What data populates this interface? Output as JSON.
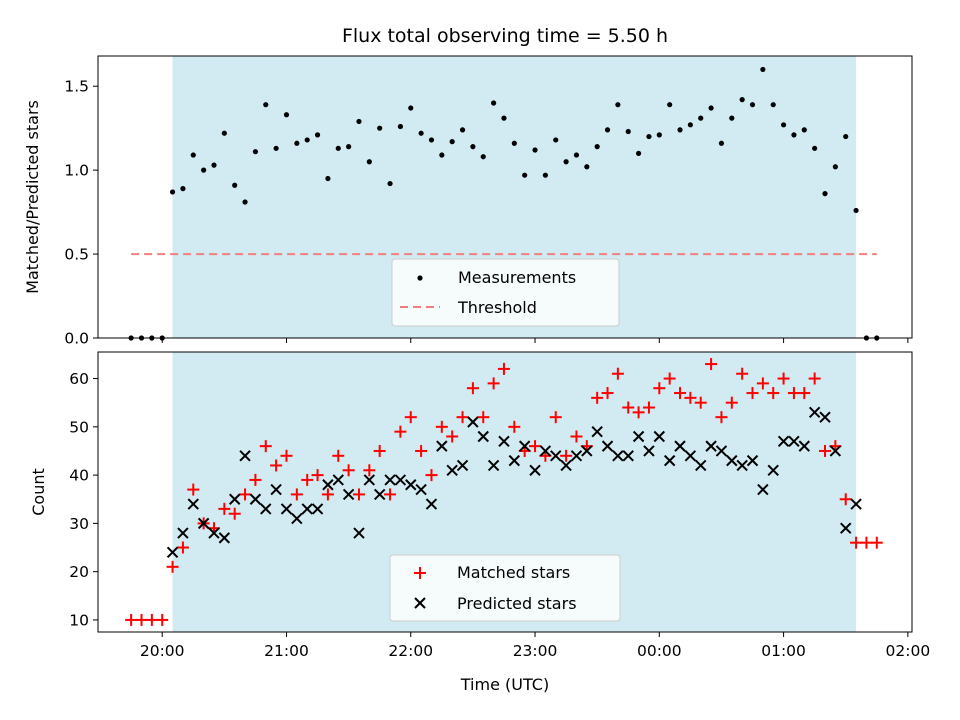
{
  "chart_data": [
    {
      "type": "scatter",
      "title": "Flux total observing time = 5.50 h",
      "xlabel": "",
      "ylabel": "Matched/Predicted stars",
      "ylim": [
        0,
        1.68
      ],
      "yticks": [
        "0.0",
        "0.5",
        "1.0",
        "1.5"
      ],
      "xticks": [
        "20:00",
        "21:00",
        "22:00",
        "23:00",
        "00:00",
        "01:00",
        "02:00"
      ],
      "shaded_span": {
        "start": "20:05",
        "end": "01:35",
        "color": "#add8e6"
      },
      "legend_placement": "lower center",
      "threshold": {
        "name": "Threshold",
        "value": 0.5,
        "start": "19:45",
        "end": "01:45",
        "color": "#f08080"
      },
      "series": [
        {
          "name": "Measurements",
          "color": "#000000",
          "marker": "dot",
          "points": [
            [
              "19:45",
              0
            ],
            [
              "19:50",
              0
            ],
            [
              "19:55",
              0
            ],
            [
              "20:00",
              0
            ],
            [
              "20:05",
              0.87
            ],
            [
              "20:10",
              0.89
            ],
            [
              "20:15",
              1.09
            ],
            [
              "20:20",
              1.0
            ],
            [
              "20:25",
              1.03
            ],
            [
              "20:30",
              1.22
            ],
            [
              "20:35",
              0.91
            ],
            [
              "20:40",
              0.81
            ],
            [
              "20:45",
              1.11
            ],
            [
              "20:50",
              1.39
            ],
            [
              "20:55",
              1.13
            ],
            [
              "21:00",
              1.33
            ],
            [
              "21:05",
              1.16
            ],
            [
              "21:10",
              1.18
            ],
            [
              "21:15",
              1.21
            ],
            [
              "21:20",
              0.95
            ],
            [
              "21:25",
              1.13
            ],
            [
              "21:30",
              1.14
            ],
            [
              "21:35",
              1.29
            ],
            [
              "21:40",
              1.05
            ],
            [
              "21:45",
              1.25
            ],
            [
              "21:50",
              0.92
            ],
            [
              "21:55",
              1.26
            ],
            [
              "22:00",
              1.37
            ],
            [
              "22:05",
              1.22
            ],
            [
              "22:10",
              1.18
            ],
            [
              "22:15",
              1.09
            ],
            [
              "22:20",
              1.17
            ],
            [
              "22:25",
              1.24
            ],
            [
              "22:30",
              1.14
            ],
            [
              "22:35",
              1.08
            ],
            [
              "22:40",
              1.4
            ],
            [
              "22:45",
              1.31
            ],
            [
              "22:50",
              1.16
            ],
            [
              "22:55",
              0.97
            ],
            [
              "23:00",
              1.12
            ],
            [
              "23:05",
              0.97
            ],
            [
              "23:10",
              1.18
            ],
            [
              "23:15",
              1.05
            ],
            [
              "23:20",
              1.09
            ],
            [
              "23:25",
              1.02
            ],
            [
              "23:30",
              1.14
            ],
            [
              "23:35",
              1.24
            ],
            [
              "23:40",
              1.39
            ],
            [
              "23:45",
              1.23
            ],
            [
              "23:50",
              1.1
            ],
            [
              "23:55",
              1.2
            ],
            [
              "00:00",
              1.21
            ],
            [
              "00:05",
              1.39
            ],
            [
              "00:10",
              1.24
            ],
            [
              "00:15",
              1.27
            ],
            [
              "00:20",
              1.31
            ],
            [
              "00:25",
              1.37
            ],
            [
              "00:30",
              1.16
            ],
            [
              "00:35",
              1.31
            ],
            [
              "00:40",
              1.42
            ],
            [
              "00:45",
              1.39
            ],
            [
              "00:50",
              1.6
            ],
            [
              "00:55",
              1.39
            ],
            [
              "01:00",
              1.27
            ],
            [
              "01:05",
              1.21
            ],
            [
              "01:10",
              1.24
            ],
            [
              "01:15",
              1.13
            ],
            [
              "01:20",
              0.86
            ],
            [
              "01:25",
              1.02
            ],
            [
              "01:30",
              1.2
            ],
            [
              "01:35",
              0.76
            ],
            [
              "01:40",
              0
            ],
            [
              "01:45",
              0
            ]
          ]
        }
      ]
    },
    {
      "type": "scatter",
      "title": "",
      "xlabel": "Time (UTC)",
      "ylabel": "Count",
      "ylim": [
        7.5,
        65.5
      ],
      "yticks": [
        "10",
        "20",
        "30",
        "40",
        "50",
        "60"
      ],
      "xticks": [
        "20:00",
        "21:00",
        "22:00",
        "23:00",
        "00:00",
        "01:00",
        "02:00"
      ],
      "xlim": [
        "19:29",
        "02:02"
      ],
      "shaded_span": {
        "start": "20:05",
        "end": "01:35",
        "color": "#add8e6"
      },
      "legend_placement": "lower center",
      "series": [
        {
          "name": "Matched stars",
          "color": "#ff0000",
          "marker": "plus",
          "points": [
            [
              "19:45",
              10
            ],
            [
              "19:50",
              10
            ],
            [
              "19:55",
              10
            ],
            [
              "20:00",
              10
            ],
            [
              "20:05",
              21
            ],
            [
              "20:10",
              25
            ],
            [
              "20:15",
              37
            ],
            [
              "20:20",
              30
            ],
            [
              "20:25",
              29
            ],
            [
              "20:30",
              33
            ],
            [
              "20:35",
              32
            ],
            [
              "20:40",
              36
            ],
            [
              "20:45",
              39
            ],
            [
              "20:50",
              46
            ],
            [
              "20:55",
              42
            ],
            [
              "21:00",
              44
            ],
            [
              "21:05",
              36
            ],
            [
              "21:10",
              39
            ],
            [
              "21:15",
              40
            ],
            [
              "21:20",
              36
            ],
            [
              "21:25",
              44
            ],
            [
              "21:30",
              41
            ],
            [
              "21:35",
              36
            ],
            [
              "21:40",
              41
            ],
            [
              "21:45",
              45
            ],
            [
              "21:50",
              36
            ],
            [
              "21:55",
              49
            ],
            [
              "22:00",
              52
            ],
            [
              "22:05",
              45
            ],
            [
              "22:10",
              40
            ],
            [
              "22:15",
              50
            ],
            [
              "22:20",
              48
            ],
            [
              "22:25",
              52
            ],
            [
              "22:30",
              58
            ],
            [
              "22:35",
              52
            ],
            [
              "22:40",
              59
            ],
            [
              "22:45",
              62
            ],
            [
              "22:50",
              50
            ],
            [
              "22:55",
              45
            ],
            [
              "23:00",
              46
            ],
            [
              "23:05",
              44
            ],
            [
              "23:10",
              52
            ],
            [
              "23:15",
              44
            ],
            [
              "23:20",
              48
            ],
            [
              "23:25",
              46
            ],
            [
              "23:30",
              56
            ],
            [
              "23:35",
              57
            ],
            [
              "23:40",
              61
            ],
            [
              "23:45",
              54
            ],
            [
              "23:50",
              53
            ],
            [
              "23:55",
              54
            ],
            [
              "00:00",
              58
            ],
            [
              "00:05",
              60
            ],
            [
              "00:10",
              57
            ],
            [
              "00:15",
              56
            ],
            [
              "00:20",
              55
            ],
            [
              "00:25",
              63
            ],
            [
              "00:30",
              52
            ],
            [
              "00:35",
              55
            ],
            [
              "00:40",
              61
            ],
            [
              "00:45",
              57
            ],
            [
              "00:50",
              59
            ],
            [
              "00:55",
              57
            ],
            [
              "01:00",
              60
            ],
            [
              "01:05",
              57
            ],
            [
              "01:10",
              57
            ],
            [
              "01:15",
              60
            ],
            [
              "01:20",
              45
            ],
            [
              "01:25",
              46
            ],
            [
              "01:30",
              35
            ],
            [
              "01:35",
              26
            ],
            [
              "01:40",
              26
            ],
            [
              "01:45",
              26
            ]
          ]
        },
        {
          "name": "Predicted stars",
          "color": "#000000",
          "marker": "x",
          "points": [
            [
              "20:05",
              24
            ],
            [
              "20:10",
              28
            ],
            [
              "20:15",
              34
            ],
            [
              "20:20",
              30
            ],
            [
              "20:25",
              28
            ],
            [
              "20:30",
              27
            ],
            [
              "20:35",
              35
            ],
            [
              "20:40",
              44
            ],
            [
              "20:45",
              35
            ],
            [
              "20:50",
              33
            ],
            [
              "20:55",
              37
            ],
            [
              "21:00",
              33
            ],
            [
              "21:05",
              31
            ],
            [
              "21:10",
              33
            ],
            [
              "21:15",
              33
            ],
            [
              "21:20",
              38
            ],
            [
              "21:25",
              39
            ],
            [
              "21:30",
              36
            ],
            [
              "21:35",
              28
            ],
            [
              "21:40",
              39
            ],
            [
              "21:45",
              36
            ],
            [
              "21:50",
              39
            ],
            [
              "21:55",
              39
            ],
            [
              "22:00",
              38
            ],
            [
              "22:05",
              37
            ],
            [
              "22:10",
              34
            ],
            [
              "22:15",
              46
            ],
            [
              "22:20",
              41
            ],
            [
              "22:25",
              42
            ],
            [
              "22:30",
              51
            ],
            [
              "22:35",
              48
            ],
            [
              "22:40",
              42
            ],
            [
              "22:45",
              47
            ],
            [
              "22:50",
              43
            ],
            [
              "22:55",
              46
            ],
            [
              "23:00",
              41
            ],
            [
              "23:05",
              45
            ],
            [
              "23:10",
              44
            ],
            [
              "23:15",
              42
            ],
            [
              "23:20",
              44
            ],
            [
              "23:25",
              45
            ],
            [
              "23:30",
              49
            ],
            [
              "23:35",
              46
            ],
            [
              "23:40",
              44
            ],
            [
              "23:45",
              44
            ],
            [
              "23:50",
              48
            ],
            [
              "23:55",
              45
            ],
            [
              "00:00",
              48
            ],
            [
              "00:05",
              43
            ],
            [
              "00:10",
              46
            ],
            [
              "00:15",
              44
            ],
            [
              "00:20",
              42
            ],
            [
              "00:25",
              46
            ],
            [
              "00:30",
              45
            ],
            [
              "00:35",
              43
            ],
            [
              "00:40",
              42
            ],
            [
              "00:45",
              43
            ],
            [
              "00:50",
              37
            ],
            [
              "00:55",
              41
            ],
            [
              "01:00",
              47
            ],
            [
              "01:05",
              47
            ],
            [
              "01:10",
              46
            ],
            [
              "01:15",
              53
            ],
            [
              "01:20",
              52
            ],
            [
              "01:25",
              45
            ],
            [
              "01:30",
              29
            ],
            [
              "01:35",
              34
            ]
          ]
        }
      ]
    }
  ]
}
